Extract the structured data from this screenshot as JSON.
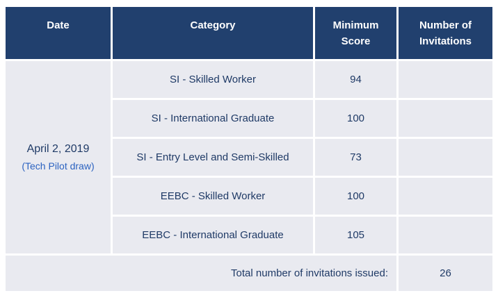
{
  "colors": {
    "header_bg": "#21406E",
    "header_text": "#FFFFFF",
    "cell_bg": "#E9EAF0",
    "body_text": "#1F3A66",
    "note_text": "#2B62C0",
    "page_bg": "#FFFFFF"
  },
  "table": {
    "columns": [
      {
        "key": "date",
        "label": "Date"
      },
      {
        "key": "category",
        "label": "Category"
      },
      {
        "key": "minimum_score",
        "label": "Minimum Score"
      },
      {
        "key": "invitations",
        "label": "Number of Invitations"
      }
    ],
    "date_cell": {
      "date": "April 2, 2019",
      "note": "(Tech Pilot draw)"
    },
    "rows": [
      {
        "category": "SI - Skilled Worker",
        "minimum_score": "94",
        "invitations": ""
      },
      {
        "category": "SI - International Graduate",
        "minimum_score": "100",
        "invitations": ""
      },
      {
        "category": "SI - Entry Level and Semi-Skilled",
        "minimum_score": "73",
        "invitations": ""
      },
      {
        "category": "EEBC - Skilled Worker",
        "minimum_score": "100",
        "invitations": ""
      },
      {
        "category": "EEBC - International Graduate",
        "minimum_score": "105",
        "invitations": ""
      }
    ],
    "total": {
      "label": "Total number of invitations issued:",
      "value": "26"
    }
  }
}
